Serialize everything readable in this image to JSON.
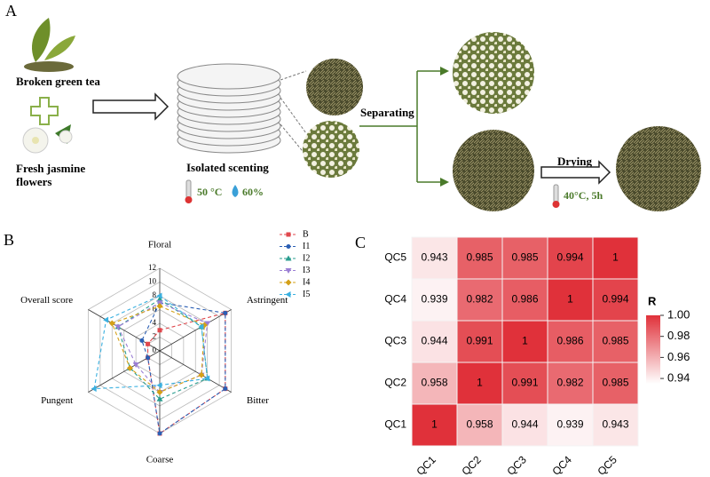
{
  "diagram": {
    "panel_label": "A",
    "tea_label": "Broken green tea",
    "jasmine_label": "Fresh jasmine flowers",
    "scenting_label": "Isolated scenting",
    "temperature": "50 °C",
    "humidity": "60%",
    "separating_label": "Separating",
    "drying_label": "Drying",
    "drying_condition": "40°C, 5h"
  },
  "chart_data": [
    {
      "type": "radar",
      "panel_label": "B",
      "axes": [
        "Floral",
        "Astringent",
        "Bitter",
        "Coarse",
        "Pungent",
        "Overall score"
      ],
      "rlim": [
        0,
        12
      ],
      "rticks": [
        0,
        2,
        4,
        6,
        8,
        10,
        12
      ],
      "grid": true,
      "legend": "top-right",
      "series": [
        {
          "name": "B",
          "color": "#e0474c",
          "marker": "square",
          "values": [
            3,
            11,
            11,
            12,
            2,
            2
          ]
        },
        {
          "name": "I1",
          "color": "#2b5fb4",
          "marker": "circle",
          "values": [
            7,
            11,
            11,
            12,
            2,
            3
          ]
        },
        {
          "name": "I2",
          "color": "#2a9d8f",
          "marker": "triangle-up",
          "values": [
            7.5,
            7,
            8,
            7,
            5,
            7
          ]
        },
        {
          "name": "I3",
          "color": "#9b7fd4",
          "marker": "triangle-down",
          "values": [
            7,
            8,
            7,
            6,
            4,
            7
          ]
        },
        {
          "name": "I4",
          "color": "#d4a017",
          "marker": "diamond",
          "values": [
            6.5,
            7.5,
            7,
            6,
            5,
            8
          ]
        },
        {
          "name": "I5",
          "color": "#3ab0e0",
          "marker": "triangle-left",
          "values": [
            8,
            7,
            8,
            5,
            11,
            9
          ]
        }
      ]
    },
    {
      "type": "heatmap",
      "panel_label": "C",
      "x": [
        "QC1",
        "QC2",
        "QC3",
        "QC4",
        "QC5"
      ],
      "y": [
        "QC1",
        "QC2",
        "QC3",
        "QC4",
        "QC5"
      ],
      "z": [
        [
          1,
          0.958,
          0.944,
          0.939,
          0.943
        ],
        [
          0.958,
          1,
          0.991,
          0.982,
          0.985
        ],
        [
          0.944,
          0.991,
          1,
          0.986,
          0.985
        ],
        [
          0.939,
          0.982,
          0.986,
          1,
          0.994
        ],
        [
          0.943,
          0.985,
          0.985,
          0.994,
          1
        ]
      ],
      "colorbar_title": "R",
      "clim": [
        0.935,
        1
      ],
      "cticks": [
        {
          "value": 1,
          "label": "1.00"
        },
        0.98,
        0.96,
        0.94
      ],
      "low_color": "#ffffff",
      "high_color": "#e0313a"
    }
  ]
}
